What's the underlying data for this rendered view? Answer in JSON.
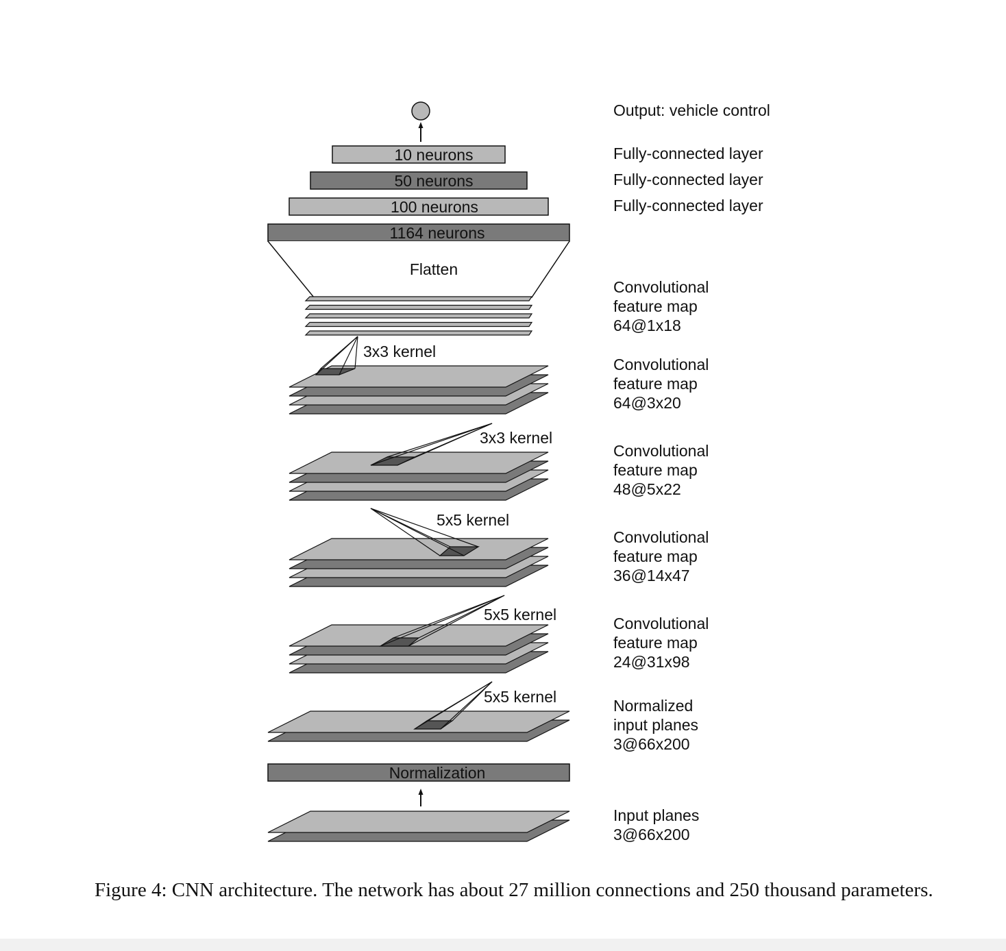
{
  "colors": {
    "light_gray": "#b8b8b8",
    "dark_gray": "#7a7a7a",
    "kernel_fill": "#555555",
    "stroke": "#111111",
    "background": "#ffffff"
  },
  "output": {
    "node_icon": "circle-node",
    "label": "Output: vehicle control"
  },
  "dense_layers": [
    {
      "text": "10 neurons",
      "label": "Fully-connected layer"
    },
    {
      "text": "50 neurons",
      "label": "Fully-connected layer"
    },
    {
      "text": "100 neurons",
      "label": "Fully-connected layer"
    },
    {
      "text": "1164 neurons",
      "label": ""
    }
  ],
  "flatten": {
    "text": "Flatten"
  },
  "feature_maps": [
    {
      "line1": "Convolutional",
      "line2": "feature map",
      "line3": "64@1x18"
    },
    {
      "line1": "Convolutional",
      "line2": "feature map",
      "line3": "64@3x20"
    },
    {
      "line1": "Convolutional",
      "line2": "feature map",
      "line3": "48@5x22"
    },
    {
      "line1": "Convolutional",
      "line2": "feature map",
      "line3": "36@14x47"
    },
    {
      "line1": "Convolutional",
      "line2": "feature map",
      "line3": "24@31x98"
    },
    {
      "line1": "Normalized",
      "line2": "input planes",
      "line3": "3@66x200"
    }
  ],
  "kernels": [
    "3x3 kernel",
    "3x3 kernel",
    "5x5 kernel",
    "5x5 kernel",
    "5x5 kernel"
  ],
  "normalization": {
    "text": "Normalization"
  },
  "input": {
    "line1": "Input planes",
    "line2": "3@66x200"
  },
  "caption": "Figure 4: CNN architecture. The network has about 27 million connections and 250 thousand parameters."
}
